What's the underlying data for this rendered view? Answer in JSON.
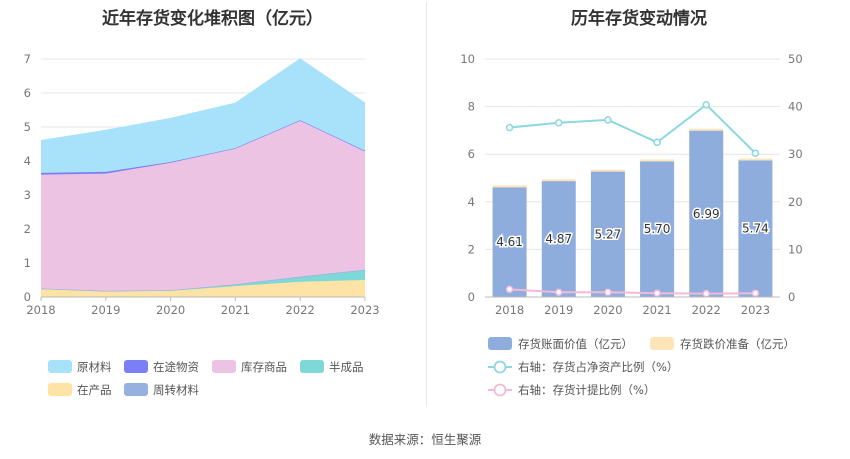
{
  "footer": {
    "label": "数据来源：",
    "source": "恒生聚源"
  },
  "colors": {
    "raw_material": "#a8e2fa",
    "in_transit": "#7b7ff5",
    "finished_goods": "#edc3e3",
    "semi_finished": "#7fd8d8",
    "in_process": "#fde3a6",
    "turnover": "#96b1df",
    "bar": "#8eacdc",
    "impairment": "#fde5b8",
    "ratio_line": "#8cd7e0",
    "provision_line": "#f3b9da"
  },
  "chart_data": [
    {
      "type": "area",
      "stacked": true,
      "title": "近年存货变化堆积图（亿元）",
      "categories": [
        "2018",
        "2019",
        "2020",
        "2021",
        "2022",
        "2023"
      ],
      "ylim": [
        0,
        7
      ],
      "yticks": [
        "0",
        "1",
        "2",
        "3",
        "4",
        "5",
        "6",
        "7"
      ],
      "series": [
        {
          "key": "in_process",
          "name": "在产品",
          "values": [
            0.25,
            0.18,
            0.18,
            0.32,
            0.45,
            0.5
          ]
        },
        {
          "key": "semi_finished",
          "name": "半成品",
          "values": [
            0.0,
            0.0,
            0.02,
            0.05,
            0.15,
            0.3
          ]
        },
        {
          "key": "turnover",
          "name": "周转材料",
          "values": [
            0.0,
            0.0,
            0.0,
            0.0,
            0.0,
            0.0
          ]
        },
        {
          "key": "finished_goods",
          "name": "库存商品",
          "values": [
            3.35,
            3.45,
            3.75,
            4.0,
            4.6,
            3.5
          ]
        },
        {
          "key": "in_transit",
          "name": "在途物资",
          "values": [
            0.05,
            0.05,
            0.02,
            0.01,
            0.0,
            0.0
          ]
        },
        {
          "key": "raw_material",
          "name": "原材料",
          "values": [
            0.95,
            1.22,
            1.28,
            1.32,
            1.8,
            1.4
          ]
        }
      ],
      "legend": [
        {
          "key": "raw_material",
          "name": "原材料"
        },
        {
          "key": "in_transit",
          "name": "在途物资"
        },
        {
          "key": "finished_goods",
          "name": "库存商品"
        },
        {
          "key": "semi_finished",
          "name": "半成品"
        },
        {
          "key": "in_process",
          "name": "在产品"
        },
        {
          "key": "turnover",
          "name": "周转材料"
        }
      ]
    },
    {
      "type": "bar",
      "title": "历年存货变动情况",
      "categories": [
        "2018",
        "2019",
        "2020",
        "2021",
        "2022",
        "2023"
      ],
      "ylim_left": [
        0,
        10
      ],
      "yticks_left": [
        "0",
        "2",
        "4",
        "6",
        "8",
        "10"
      ],
      "ylim_right": [
        0,
        50
      ],
      "yticks_right": [
        "0",
        "10",
        "20",
        "30",
        "40",
        "50"
      ],
      "bar_series": {
        "name": "存货账面价值（亿元）",
        "values": [
          4.61,
          4.87,
          5.27,
          5.7,
          6.99,
          5.74
        ],
        "labels": [
          "4.61",
          "4.87",
          "5.27",
          "5.70",
          "6.99",
          "5.74"
        ]
      },
      "impairment_series": {
        "name": "存货跌价准备（亿元）",
        "values": [
          0.08,
          0.08,
          0.08,
          0.08,
          0.08,
          0.08
        ]
      },
      "line_series": [
        {
          "key": "ratio_line",
          "name": "右轴：存货占净资产比例（%）",
          "values": [
            35.6,
            36.6,
            37.2,
            32.5,
            40.4,
            30.2
          ]
        },
        {
          "key": "provision_line",
          "name": "右轴：存货计提比例（%）",
          "values": [
            1.6,
            1.0,
            1.0,
            0.8,
            0.7,
            0.8
          ]
        }
      ]
    }
  ]
}
